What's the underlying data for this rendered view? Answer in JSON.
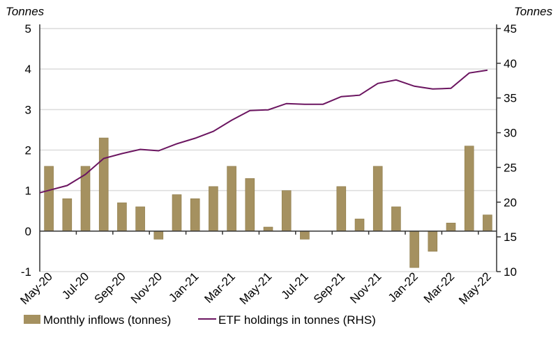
{
  "chart_data": {
    "type": "bar+line",
    "left_axis": {
      "label": "Tonnes",
      "ylim": [
        -1,
        5
      ],
      "ticks": [
        "-1",
        "0",
        "1",
        "2",
        "3",
        "4",
        "5"
      ]
    },
    "right_axis": {
      "label": "Tonnes",
      "ylim": [
        10,
        45
      ],
      "ticks": [
        "10",
        "15",
        "20",
        "25",
        "30",
        "35",
        "40",
        "45"
      ]
    },
    "categories": [
      "May-20",
      "Jun-20",
      "Jul-20",
      "Aug-20",
      "Sep-20",
      "Oct-20",
      "Nov-20",
      "Dec-20",
      "Jan-21",
      "Feb-21",
      "Mar-21",
      "Apr-21",
      "May-21",
      "Jun-21",
      "Jul-21",
      "Aug-21",
      "Sep-21",
      "Oct-21",
      "Nov-21",
      "Dec-21",
      "Jan-22",
      "Feb-22",
      "Mar-22",
      "Apr-22",
      "May-22"
    ],
    "x_tick_labels": [
      "May-20",
      "Jul-20",
      "Sep-20",
      "Nov-20",
      "Jan-21",
      "Mar-21",
      "May-21",
      "Jul-21",
      "Sep-21",
      "Nov-21",
      "Jan-22",
      "Mar-22",
      "May-22"
    ],
    "grid": true,
    "legend_position": "bottom",
    "series": [
      {
        "name": "Monthly inflows (tonnes)",
        "type": "bar",
        "axis": "left",
        "color": "#a59160",
        "values": [
          1.6,
          0.8,
          1.6,
          2.3,
          0.7,
          0.6,
          -0.2,
          0.9,
          0.8,
          1.1,
          1.6,
          1.3,
          0.1,
          1.0,
          -0.2,
          0,
          1.1,
          0.3,
          1.6,
          0.6,
          -0.9,
          -0.5,
          0.2,
          2.1,
          0.4
        ]
      },
      {
        "name": "ETF holdings in tonnes (RHS)",
        "type": "line",
        "axis": "right",
        "color": "#6b1560",
        "values": [
          21.7,
          22.4,
          24.0,
          26.3,
          27.0,
          27.6,
          27.4,
          28.4,
          29.2,
          30.2,
          31.8,
          33.2,
          33.3,
          34.2,
          34.1,
          34.1,
          35.2,
          35.4,
          37.1,
          37.6,
          36.7,
          36.3,
          36.4,
          38.6,
          39.0
        ]
      }
    ]
  }
}
